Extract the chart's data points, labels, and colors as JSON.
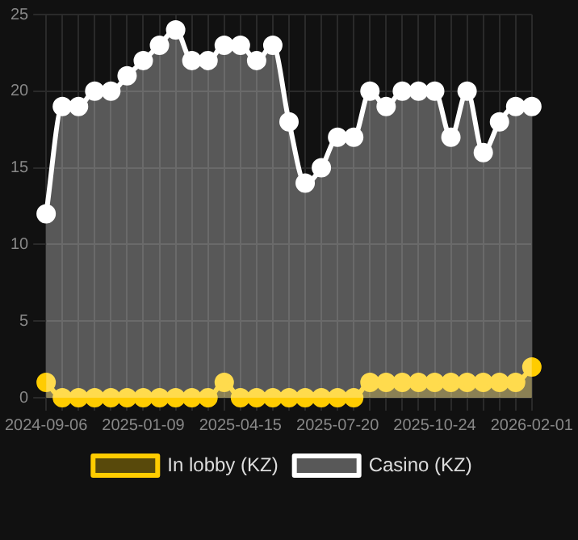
{
  "chart_data": {
    "type": "area",
    "categories": [
      "2024-09-06",
      null,
      null,
      null,
      null,
      null,
      "2025-01-09",
      null,
      null,
      null,
      null,
      null,
      "2025-04-15",
      null,
      null,
      null,
      null,
      null,
      "2025-07-20",
      null,
      null,
      null,
      null,
      null,
      "2025-10-24",
      null,
      null,
      null,
      null,
      null,
      "2026-02-01"
    ],
    "series": [
      {
        "name": "In lobby (KZ)",
        "color": "#ffcc00",
        "values": [
          1,
          0,
          0,
          0,
          0,
          0,
          0,
          0,
          0,
          0,
          0,
          1,
          0,
          0,
          0,
          0,
          0,
          0,
          0,
          0,
          1,
          1,
          1,
          1,
          1,
          1,
          1,
          1,
          1,
          1,
          2
        ]
      },
      {
        "name": "Casino (KZ)",
        "color": "#ffffff",
        "values": [
          12,
          19,
          19,
          20,
          20,
          21,
          22,
          23,
          24,
          22,
          22,
          23,
          23,
          22,
          23,
          18,
          14,
          15,
          17,
          17,
          20,
          19,
          20,
          20,
          20,
          17,
          20,
          16,
          18,
          19,
          19
        ]
      }
    ],
    "ylim": [
      0,
      25
    ],
    "yticks": [
      0,
      5,
      10,
      15,
      20,
      25
    ],
    "grid": true,
    "legend": "bottom",
    "marker": "circle",
    "line_style": "solid"
  }
}
